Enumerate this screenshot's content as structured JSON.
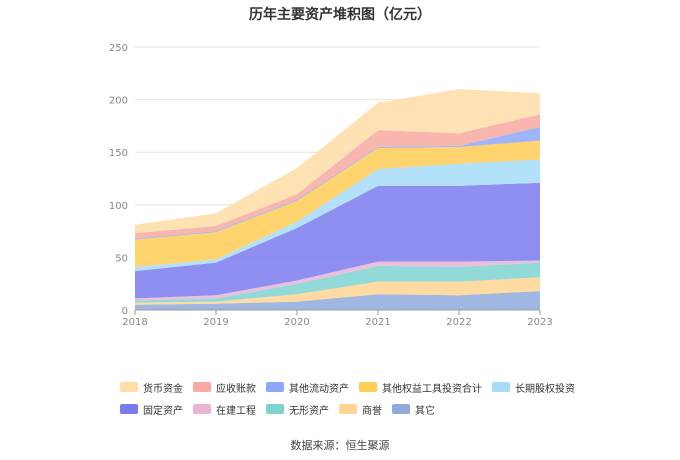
{
  "title": "历年主要资产堆积图（亿元）",
  "source": "数据来源：恒生聚源",
  "chart_data": {
    "type": "area",
    "stacked": true,
    "x": [
      "2018",
      "2019",
      "2020",
      "2021",
      "2022",
      "2023"
    ],
    "yticks": [
      0,
      50,
      100,
      150,
      200,
      250
    ],
    "ylim": [
      0,
      250
    ],
    "grid": true,
    "legend_position": "bottom",
    "series": [
      {
        "name": "其它",
        "color": "#8FAADC",
        "values": [
          5,
          6,
          8,
          15,
          14,
          18
        ]
      },
      {
        "name": "商誉",
        "color": "#FFD591",
        "values": [
          2,
          2,
          7,
          12,
          13,
          13
        ]
      },
      {
        "name": "无形资产",
        "color": "#7ED3D1",
        "values": [
          2,
          3,
          10,
          15,
          14,
          14
        ]
      },
      {
        "name": "在建工程",
        "color": "#E9B5D5",
        "values": [
          2,
          3,
          3,
          4,
          5,
          2
        ]
      },
      {
        "name": "固定资产",
        "color": "#7B7BF0",
        "values": [
          26,
          31,
          50,
          72,
          72,
          74
        ]
      },
      {
        "name": "长期股权投资",
        "color": "#A6DCF8",
        "values": [
          4,
          3,
          6,
          16,
          21,
          22
        ]
      },
      {
        "name": "其他权益工具投资合计",
        "color": "#FFCC55",
        "values": [
          26,
          26,
          20,
          20,
          16,
          18
        ]
      },
      {
        "name": "其他流动资产",
        "color": "#8EA8F8",
        "values": [
          1,
          1,
          1,
          1,
          1,
          13
        ]
      },
      {
        "name": "应收账款",
        "color": "#F8A9A0",
        "values": [
          5,
          5,
          5,
          16,
          12,
          12
        ]
      },
      {
        "name": "货币资金",
        "color": "#FFDDA6",
        "values": [
          8,
          12,
          25,
          26,
          42,
          20
        ]
      }
    ],
    "legend_order": [
      "货币资金",
      "应收账款",
      "其他流动资产",
      "其他权益工具投资合计",
      "长期股权投资",
      "固定资产",
      "在建工程",
      "无形资产",
      "商誉",
      "其它"
    ]
  }
}
